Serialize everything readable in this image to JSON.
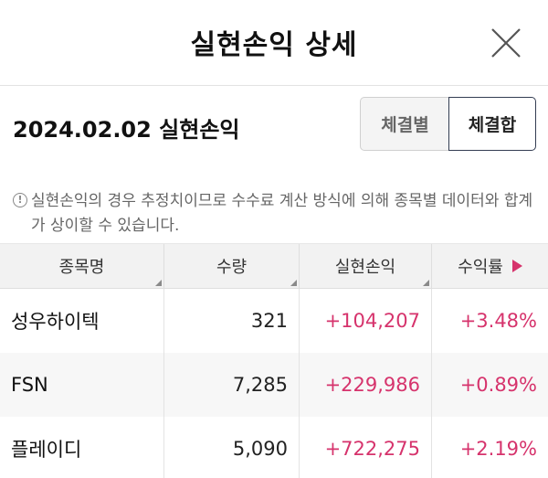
{
  "header": {
    "title": "실현손익 상세"
  },
  "summary": {
    "date_title": "2024.02.02 실현손익",
    "toggle": [
      {
        "label": "체결별",
        "selected": false
      },
      {
        "label": "체결합",
        "selected": true
      }
    ]
  },
  "notice": {
    "icon": "info-icon",
    "text": "실현손익의 경우 추정치이므로 수수료 계산 방식에 의해 종목별 데이터와 합계가 상이할 수 있습니다."
  },
  "table": {
    "columns": [
      "종목명",
      "수량",
      "실현손익",
      "수익률"
    ],
    "rows": [
      {
        "name": "성우하이텍",
        "qty": "321",
        "pnl": "+104,207",
        "rate": "+3.48%"
      },
      {
        "name": "FSN",
        "qty": "7,285",
        "pnl": "+229,986",
        "rate": "+0.89%"
      },
      {
        "name": "플레이디",
        "qty": "5,090",
        "pnl": "+722,275",
        "rate": "+2.19%"
      }
    ]
  },
  "colors": {
    "positive": "#d6336c",
    "toggle_border": "#333d52"
  }
}
